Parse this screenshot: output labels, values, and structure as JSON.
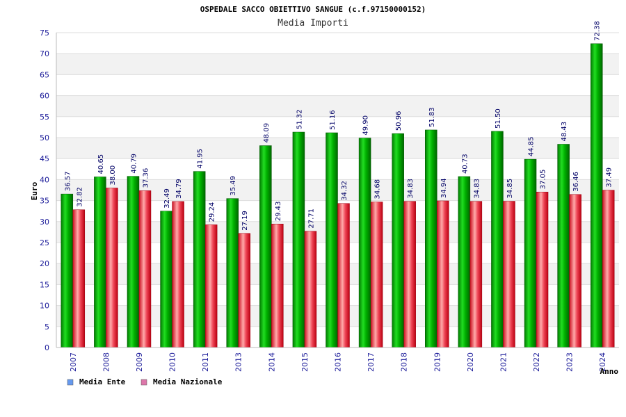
{
  "chart_data": {
    "type": "bar",
    "title": "OSPEDALE SACCO OBIETTIVO SANGUE (c.f.97150000152)",
    "subtitle": "Media Importi",
    "xlabel": "Anno",
    "ylabel": "Euro",
    "ylim": [
      0,
      75
    ],
    "ytick_step": 5,
    "grid": true,
    "legend_position": "bottom-left",
    "categories": [
      "2007",
      "2008",
      "2009",
      "2010",
      "2011",
      "2013",
      "2014",
      "2015",
      "2016",
      "2017",
      "2018",
      "2019",
      "2020",
      "2021",
      "2022",
      "2023",
      "2024"
    ],
    "series": [
      {
        "name": "Media Ente",
        "legend_color": "#6699ee",
        "bar_color": "#00aa00",
        "values": [
          36.57,
          40.65,
          40.79,
          32.49,
          41.95,
          35.49,
          48.09,
          51.32,
          51.16,
          49.9,
          50.96,
          51.83,
          40.73,
          51.5,
          44.85,
          48.43,
          72.38
        ],
        "labels": [
          "36.57",
          "40.65",
          "40.79",
          "32.49",
          "41.95",
          "35.49",
          "48.09",
          "51.32",
          "51.16",
          "49.90",
          "50.96",
          "51.83",
          "40.73",
          "51.50",
          "44.85",
          "48.43",
          "72.38"
        ]
      },
      {
        "name": "Media Nazionale",
        "legend_color": "#dd77aa",
        "bar_color": "#dd2233",
        "values": [
          32.82,
          38.0,
          37.36,
          34.79,
          29.24,
          27.19,
          29.43,
          27.71,
          34.32,
          34.68,
          34.83,
          34.94,
          34.83,
          34.85,
          37.05,
          36.46,
          37.49
        ],
        "labels": [
          "32.82",
          "38.00",
          "37.36",
          "34.79",
          "29.24",
          "27.19",
          "29.43",
          "27.71",
          "34.32",
          "34.68",
          "34.83",
          "34.94",
          "34.83",
          "34.85",
          "37.05",
          "36.46",
          "37.49"
        ]
      }
    ]
  }
}
